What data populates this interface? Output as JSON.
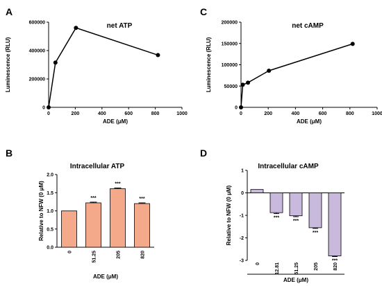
{
  "chart_data": [
    {
      "panel": "A",
      "type": "line",
      "title": "net ATP",
      "xlabel": "ADE (μM)",
      "ylabel": "Luminescence (RLU)",
      "xlim": [
        0,
        1000
      ],
      "ylim": [
        0,
        600000
      ],
      "xticks": [
        "0",
        "200",
        "400",
        "600",
        "800",
        "1000"
      ],
      "yticks": [
        "0",
        "200000",
        "400000",
        "600000"
      ],
      "x": [
        0,
        51.25,
        205,
        820
      ],
      "y": [
        0,
        315000,
        560000,
        368000
      ]
    },
    {
      "panel": "C",
      "type": "line",
      "title": "net cAMP",
      "xlabel": "ADE (μM)",
      "ylabel": "Luminescence (RLU)",
      "xlim": [
        0,
        1000
      ],
      "ylim": [
        0,
        200000
      ],
      "xticks": [
        "0",
        "200",
        "400",
        "600",
        "800",
        "1000"
      ],
      "yticks": [
        "0",
        "50000",
        "100000",
        "150000",
        "200000"
      ],
      "x": [
        0,
        12.81,
        51.25,
        205,
        820
      ],
      "y": [
        0,
        53000,
        58000,
        86000,
        149000
      ]
    },
    {
      "panel": "B",
      "type": "bar",
      "title": "Intracellular ATP",
      "xlabel": "ADE (μM)",
      "ylabel": "Relative to NFW (0 μM)",
      "ylim": [
        0,
        2.0
      ],
      "yticks": [
        "0.0",
        "0.5",
        "1.0",
        "1.5",
        "2.0"
      ],
      "categories": [
        "0",
        "51.25",
        "205",
        "820"
      ],
      "values": [
        1.0,
        1.22,
        1.61,
        1.2
      ],
      "errors": [
        0,
        0.02,
        0.02,
        0.02
      ],
      "annotations": [
        "",
        "***",
        "***",
        "***"
      ],
      "bar_color": "#f4a98a"
    },
    {
      "panel": "D",
      "type": "bar",
      "title": "Intracellular cAMP",
      "xlabel": "ADE (μM)",
      "ylabel": "Relative to NFW (0 μM)",
      "ylim": [
        -3,
        1
      ],
      "yticks": [
        "1",
        "0",
        "-1",
        "-2",
        "-3"
      ],
      "categories": [
        "0",
        "12.81",
        "51.25",
        "205",
        "820"
      ],
      "values": [
        0.15,
        -0.88,
        -1.02,
        -1.55,
        -2.8
      ],
      "errors": [
        0,
        0.04,
        0.04,
        0.03,
        0.03
      ],
      "annotations": [
        "",
        "***",
        "***",
        "***",
        "***"
      ],
      "bar_color": "#c9b9dc"
    }
  ]
}
